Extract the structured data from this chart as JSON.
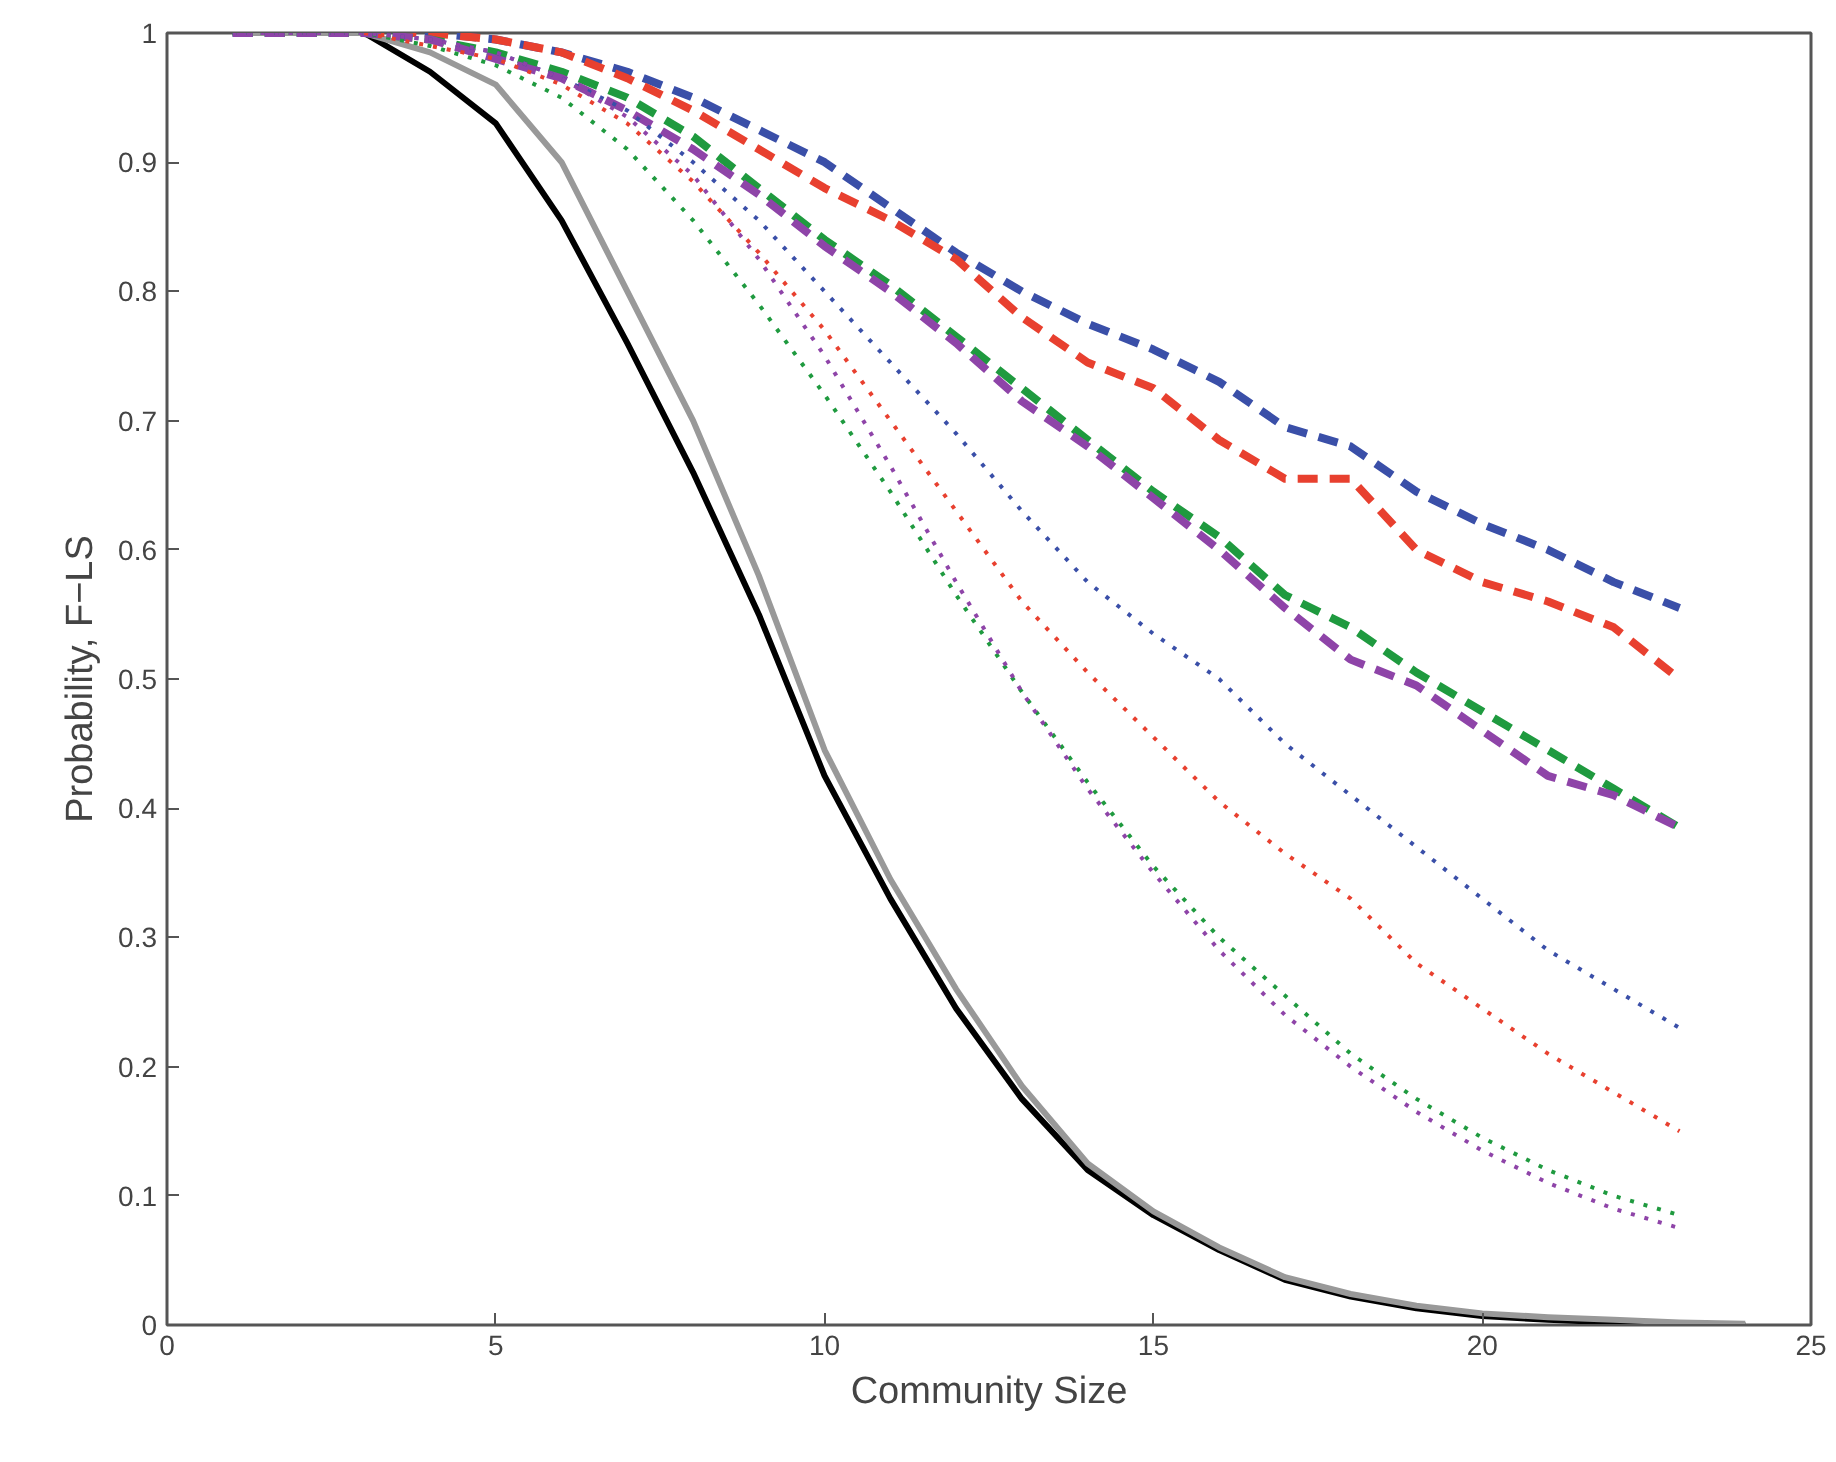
{
  "chart_data": {
    "type": "line",
    "xlabel": "Community Size",
    "ylabel": "Probability, F−LS",
    "x": [
      1,
      2,
      3,
      4,
      5,
      6,
      7,
      8,
      9,
      10,
      11,
      12,
      13,
      14,
      15,
      16,
      17,
      18,
      19,
      20,
      21,
      22,
      23
    ],
    "xlim": [
      0,
      25
    ],
    "ylim": [
      0,
      1
    ],
    "xticks": [
      0,
      5,
      10,
      15,
      20,
      25
    ],
    "yticks": [
      0,
      0.1,
      0.2,
      0.3,
      0.4,
      0.5,
      0.6,
      0.7,
      0.8,
      0.9,
      1
    ],
    "grid": false,
    "marker": "none",
    "series": [
      {
        "color": "#000000",
        "line_style": "solid",
        "x": [
          1,
          2,
          3,
          4,
          5,
          6,
          7,
          8,
          9,
          10,
          11,
          12,
          13,
          14,
          15,
          16,
          17,
          18,
          19,
          20,
          21,
          22,
          23,
          24
        ],
        "values": [
          1,
          1,
          1,
          0.97,
          0.93,
          0.855,
          0.76,
          0.66,
          0.55,
          0.425,
          0.33,
          0.245,
          0.175,
          0.12,
          0.085,
          0.058,
          0.035,
          0.022,
          0.013,
          0.007,
          0.004,
          0.002,
          0.001,
          0
        ]
      },
      {
        "color": "#999999",
        "line_style": "solid",
        "x": [
          1,
          2,
          3,
          4,
          5,
          6,
          7,
          8,
          9,
          10,
          11,
          12,
          13,
          14,
          15,
          16,
          17,
          18,
          19,
          20,
          21,
          22,
          23,
          24
        ],
        "values": [
          1,
          1,
          1,
          0.985,
          0.96,
          0.9,
          0.8,
          0.7,
          0.58,
          0.445,
          0.345,
          0.26,
          0.185,
          0.125,
          0.088,
          0.06,
          0.037,
          0.024,
          0.015,
          0.009,
          0.006,
          0.004,
          0.002,
          0.001
        ]
      },
      {
        "color": "#3a4fa8",
        "line_style": "dashed",
        "values": [
          1,
          1,
          1,
          1,
          0.995,
          0.985,
          0.97,
          0.95,
          0.925,
          0.9,
          0.865,
          0.83,
          0.8,
          0.775,
          0.755,
          0.73,
          0.695,
          0.68,
          0.645,
          0.62,
          0.6,
          0.575,
          0.555
        ]
      },
      {
        "color": "#e8402f",
        "line_style": "dashed",
        "values": [
          null,
          null,
          1,
          1,
          0.995,
          0.985,
          0.965,
          0.94,
          0.91,
          0.88,
          0.855,
          0.825,
          0.78,
          0.745,
          0.725,
          0.685,
          0.655,
          0.655,
          0.6,
          0.575,
          0.56,
          0.54,
          0.5
        ]
      },
      {
        "color": "#1f9a3f",
        "line_style": "dashed",
        "values": [
          1,
          1,
          1,
          0.995,
          0.985,
          0.97,
          0.95,
          0.92,
          0.88,
          0.84,
          0.805,
          0.765,
          0.725,
          0.685,
          0.645,
          0.61,
          0.565,
          0.54,
          0.505,
          0.475,
          0.445,
          0.415,
          0.385
        ]
      },
      {
        "color": "#8e44a8",
        "line_style": "dashed",
        "values": [
          1,
          1,
          1,
          0.995,
          0.98,
          0.965,
          0.94,
          0.91,
          0.875,
          0.835,
          0.8,
          0.76,
          0.715,
          0.68,
          0.64,
          0.6,
          0.555,
          0.515,
          0.495,
          0.46,
          0.425,
          0.41,
          0.385
        ]
      },
      {
        "color": "#3a4fa8",
        "line_style": "dotted",
        "values": [
          1,
          1,
          1,
          0.995,
          0.985,
          0.965,
          0.94,
          0.9,
          0.855,
          0.8,
          0.745,
          0.69,
          0.63,
          0.575,
          0.535,
          0.5,
          0.45,
          0.41,
          0.37,
          0.33,
          0.29,
          0.26,
          0.23
        ]
      },
      {
        "color": "#e8402f",
        "line_style": "dotted",
        "values": [
          null,
          null,
          1,
          0.99,
          0.98,
          0.96,
          0.93,
          0.885,
          0.83,
          0.77,
          0.7,
          0.63,
          0.56,
          0.505,
          0.455,
          0.405,
          0.365,
          0.33,
          0.28,
          0.245,
          0.21,
          0.18,
          0.15
        ]
      },
      {
        "color": "#1f9a3f",
        "line_style": "dotted",
        "values": [
          1,
          1,
          1,
          0.99,
          0.975,
          0.95,
          0.91,
          0.855,
          0.79,
          0.72,
          0.645,
          0.565,
          0.49,
          0.42,
          0.355,
          0.3,
          0.255,
          0.21,
          0.175,
          0.145,
          0.12,
          0.1,
          0.085
        ]
      },
      {
        "color": "#8e44a8",
        "line_style": "dotted",
        "values": [
          1,
          1,
          1,
          0.995,
          0.985,
          0.965,
          0.935,
          0.89,
          0.825,
          0.75,
          0.665,
          0.575,
          0.49,
          0.415,
          0.35,
          0.29,
          0.24,
          0.2,
          0.165,
          0.135,
          0.11,
          0.09,
          0.075
        ]
      }
    ]
  }
}
